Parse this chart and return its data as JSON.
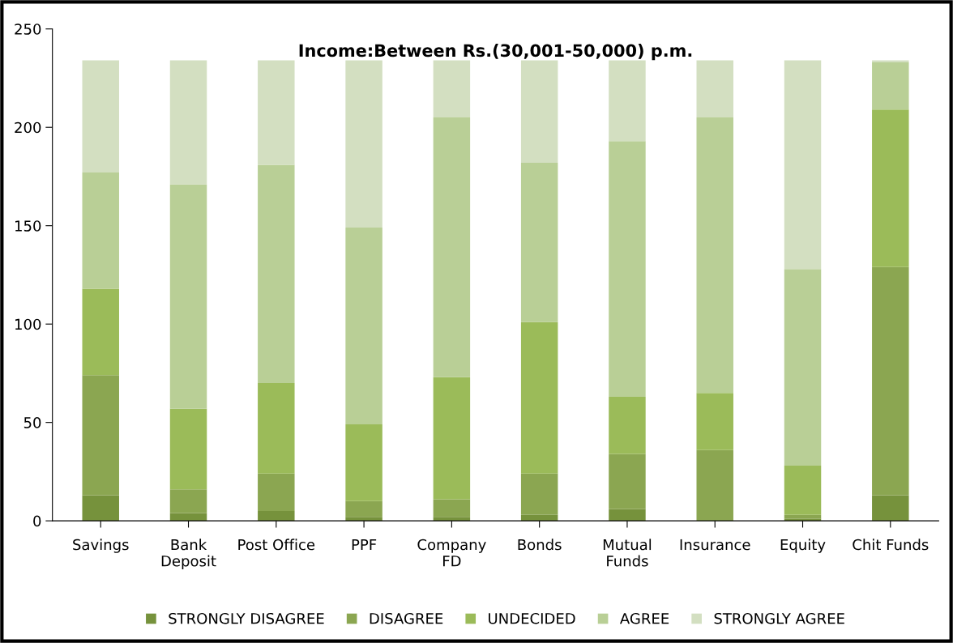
{
  "chart_data": {
    "type": "bar",
    "stacked": true,
    "title": "Income:Between Rs.(30,001-50,000) p.m.",
    "categories": [
      "Savings",
      "Bank\nDeposit",
      "Post Office",
      "PPF",
      "Company\nFD",
      "Bonds",
      "Mutual\nFunds",
      "Insurance",
      "Equity",
      "Chit Funds"
    ],
    "series": [
      {
        "name": "STRONGLY DISAGREE",
        "color": "#76923c",
        "values": [
          13,
          4,
          5,
          2,
          2,
          3,
          6,
          0,
          1,
          13
        ]
      },
      {
        "name": "DISAGREE",
        "color": "#8ba651",
        "values": [
          61,
          12,
          19,
          8,
          9,
          21,
          28,
          36,
          2,
          116
        ]
      },
      {
        "name": "UNDECIDED",
        "color": "#9bbb59",
        "values": [
          44,
          41,
          46,
          39,
          62,
          77,
          29,
          29,
          25,
          80
        ]
      },
      {
        "name": "AGREE",
        "color": "#b9cf96",
        "values": [
          59,
          114,
          111,
          100,
          132,
          81,
          130,
          140,
          100,
          24
        ]
      },
      {
        "name": "STRONGLY AGREE",
        "color": "#d3dfc1",
        "values": [
          57,
          63,
          53,
          85,
          29,
          52,
          41,
          29,
          106,
          1
        ]
      }
    ],
    "ylim": [
      0,
      250
    ],
    "yticks": [
      0,
      50,
      100,
      150,
      200,
      250
    ],
    "grid": false,
    "legend": "bottom"
  }
}
